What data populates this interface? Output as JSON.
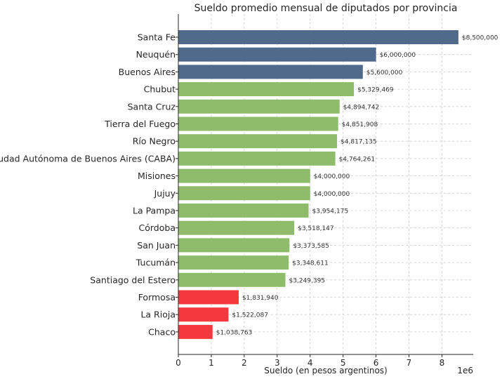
{
  "chart_data": {
    "type": "bar",
    "orientation": "horizontal",
    "title": "Sueldo promedio mensual de diputados por provincia",
    "xlabel": "Sueldo (en pesos argentinos)",
    "ylabel": "",
    "x_scale_label": "1e6",
    "xlim": [
      0,
      8.95
    ],
    "x_ticks": [
      "0",
      "1",
      "2",
      "3",
      "4",
      "5",
      "6",
      "7",
      "8"
    ],
    "grid": true,
    "categories": [
      "Santa Fe",
      "Neuquén",
      "Buenos Aires",
      "Chubut",
      "Santa Cruz",
      "Tierra del Fuego",
      "Río Negro",
      "Ciudad Autónoma de Buenos Aires (CABA)",
      "Misiones",
      "Jujuy",
      "La Pampa",
      "Córdoba",
      "San Juan",
      "Tucumán",
      "Santiago del Estero",
      "Formosa",
      "La Rioja",
      "Chaco"
    ],
    "values": [
      8500000,
      6000000,
      5600000,
      5329469,
      4894742,
      4851908,
      4817135,
      4764261,
      4000000,
      4000000,
      3954175,
      3518147,
      3373585,
      3348611,
      3249395,
      1831940,
      1522087,
      1038763
    ],
    "value_labels": [
      "$8,500,000",
      "$6,000,000",
      "$5,600,000",
      "$5,329,469",
      "$4,894,742",
      "$4,851,908",
      "$4,817,135",
      "$4,764,261",
      "$4,000,000",
      "$4,000,000",
      "$3,954,175",
      "$3,518,147",
      "$3,373,585",
      "$3,348,611",
      "$3,249,395",
      "$1,831,940",
      "$1,522,087",
      "$1,038,763"
    ],
    "bar_colors": [
      "#4f6a8a",
      "#4f6a8a",
      "#4f6a8a",
      "#8fbc6a",
      "#8fbc6a",
      "#8fbc6a",
      "#8fbc6a",
      "#8fbc6a",
      "#8fbc6a",
      "#8fbc6a",
      "#8fbc6a",
      "#8fbc6a",
      "#8fbc6a",
      "#8fbc6a",
      "#8fbc6a",
      "#f5383e",
      "#f5383e",
      "#f5383e"
    ]
  }
}
